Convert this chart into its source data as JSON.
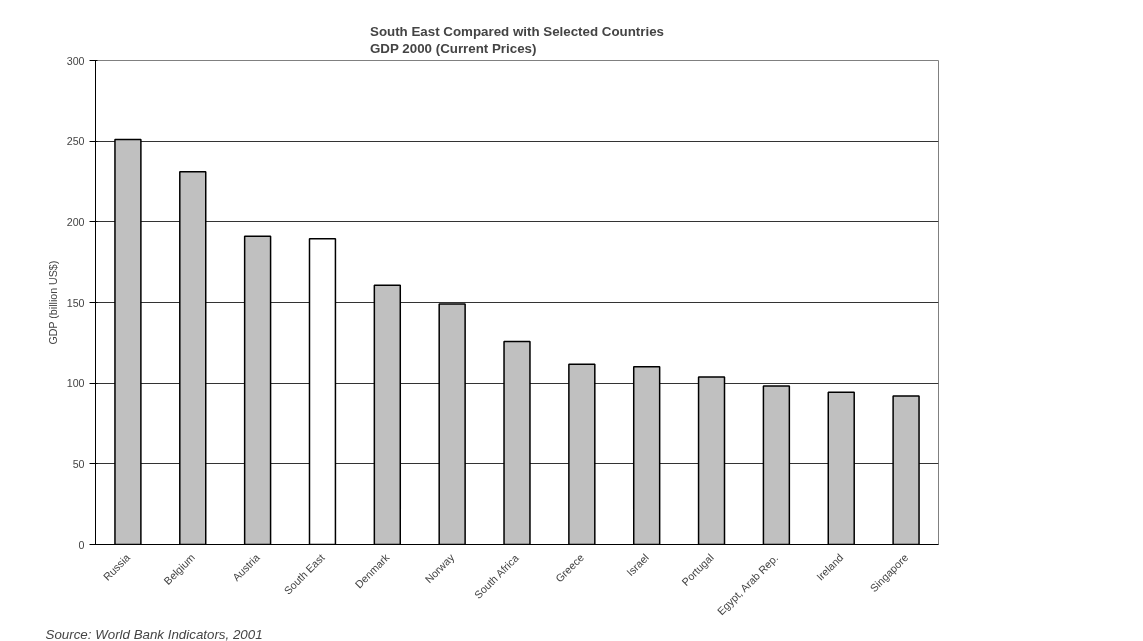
{
  "chart_data": {
    "type": "bar",
    "title": "South East Compared with Selected Countries\nGDP 2000 (Current Prices)",
    "ylabel": "GDP (billion US$)",
    "categories": [
      "Russia",
      "Belgium",
      "Austria",
      "South East",
      "Denmark",
      "Norway",
      "South Africa",
      "Greece",
      "Israel",
      "Portugal",
      "Egypt, Arab Rep.",
      "Ireland",
      "Singapore"
    ],
    "values": [
      251,
      231,
      191,
      189.5,
      160.7,
      149,
      125.8,
      111.7,
      110.2,
      103.8,
      98.2,
      94.4,
      92.1
    ],
    "colors": [
      "#c0c0c0",
      "#c0c0c0",
      "#c0c0c0",
      "#ffffff",
      "#c0c0c0",
      "#c0c0c0",
      "#c0c0c0",
      "#c0c0c0",
      "#c0c0c0",
      "#c0c0c0",
      "#c0c0c0",
      "#c0c0c0",
      "#c0c0c0"
    ],
    "ylim": [
      0,
      300
    ],
    "yticks": [
      0,
      50,
      100,
      150,
      200,
      250,
      300
    ],
    "grid": "y",
    "annotations": [
      "Source: World Bank Indicators, 2001"
    ]
  }
}
